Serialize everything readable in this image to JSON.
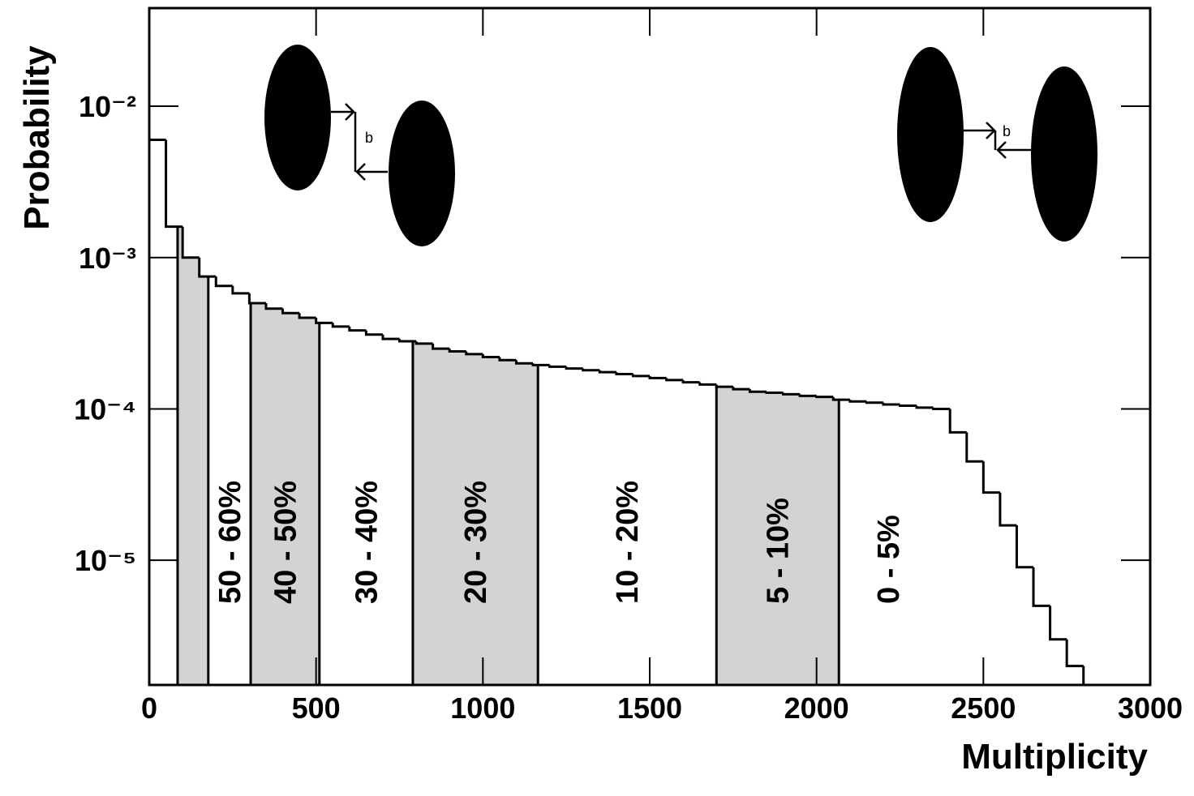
{
  "chart_data": {
    "type": "histogram",
    "xlabel": "Multiplicity",
    "ylabel": "Probability",
    "log_y": true,
    "color": "#000000",
    "shade_color": "#d3d3d3",
    "xlim": [
      0,
      3000
    ],
    "xticks": [
      0,
      500,
      1000,
      1500,
      2000,
      2500,
      3000
    ],
    "ylim": [
      1.5e-06,
      0.0445
    ],
    "yticks": [
      {
        "value": 0.01,
        "label": "10⁻²"
      },
      {
        "value": 0.001,
        "label": "10⁻³"
      },
      {
        "value": 0.0001,
        "label": "10⁻⁴"
      },
      {
        "value": 1e-05,
        "label": "10⁻⁵"
      }
    ],
    "bins": [
      0,
      50,
      100,
      150,
      200,
      250,
      300,
      350,
      400,
      450,
      500,
      550,
      600,
      650,
      700,
      750,
      800,
      850,
      900,
      950,
      1000,
      1050,
      1100,
      1150,
      1200,
      1250,
      1300,
      1350,
      1400,
      1450,
      1500,
      1550,
      1600,
      1650,
      1700,
      1750,
      1800,
      1850,
      1900,
      1950,
      2000,
      2050,
      2100,
      2150,
      2200,
      2250,
      2300,
      2350,
      2400,
      2450,
      2500,
      2550,
      2600,
      2650,
      2700,
      2750,
      2800
    ],
    "values": [
      0.006,
      0.0016,
      0.001,
      0.00075,
      0.00065,
      0.00058,
      0.0005,
      0.00046,
      0.00043,
      0.0004,
      0.00037,
      0.00035,
      0.00033,
      0.00031,
      0.00029,
      0.00028,
      0.00027,
      0.00025,
      0.00024,
      0.00023,
      0.00022,
      0.00021,
      0.0002,
      0.000195,
      0.00019,
      0.000185,
      0.00018,
      0.000175,
      0.00017,
      0.000165,
      0.00016,
      0.000155,
      0.00015,
      0.000145,
      0.00014,
      0.000135,
      0.00013,
      0.000128,
      0.000125,
      0.000122,
      0.00012,
      0.000115,
      0.000112,
      0.00011,
      0.000107,
      0.000105,
      0.000102,
      0.0001,
      7e-05,
      4.5e-05,
      2.8e-05,
      1.7e-05,
      9e-06,
      5e-06,
      3e-06,
      2e-06
    ],
    "regions": [
      {
        "range": [
          85,
          177
        ],
        "shaded": true
      },
      {
        "range": [
          177,
          304
        ],
        "label": "50 - 60%",
        "shaded": false
      },
      {
        "range": [
          304,
          510
        ],
        "label": "40 - 50%",
        "shaded": true
      },
      {
        "range": [
          510,
          790
        ],
        "label": "30 - 40%",
        "shaded": false
      },
      {
        "range": [
          790,
          1165
        ],
        "label": "20 - 30%",
        "shaded": true
      },
      {
        "range": [
          1165,
          1700
        ],
        "label": "10 - 20%",
        "shaded": false
      },
      {
        "range": [
          1700,
          2067
        ],
        "label": "5 - 10%",
        "shaded": true
      },
      {
        "range": [
          2067,
          2363
        ],
        "label": "0 - 5%",
        "shaded": false
      }
    ],
    "diagram_labels": [
      "b",
      "b"
    ]
  }
}
